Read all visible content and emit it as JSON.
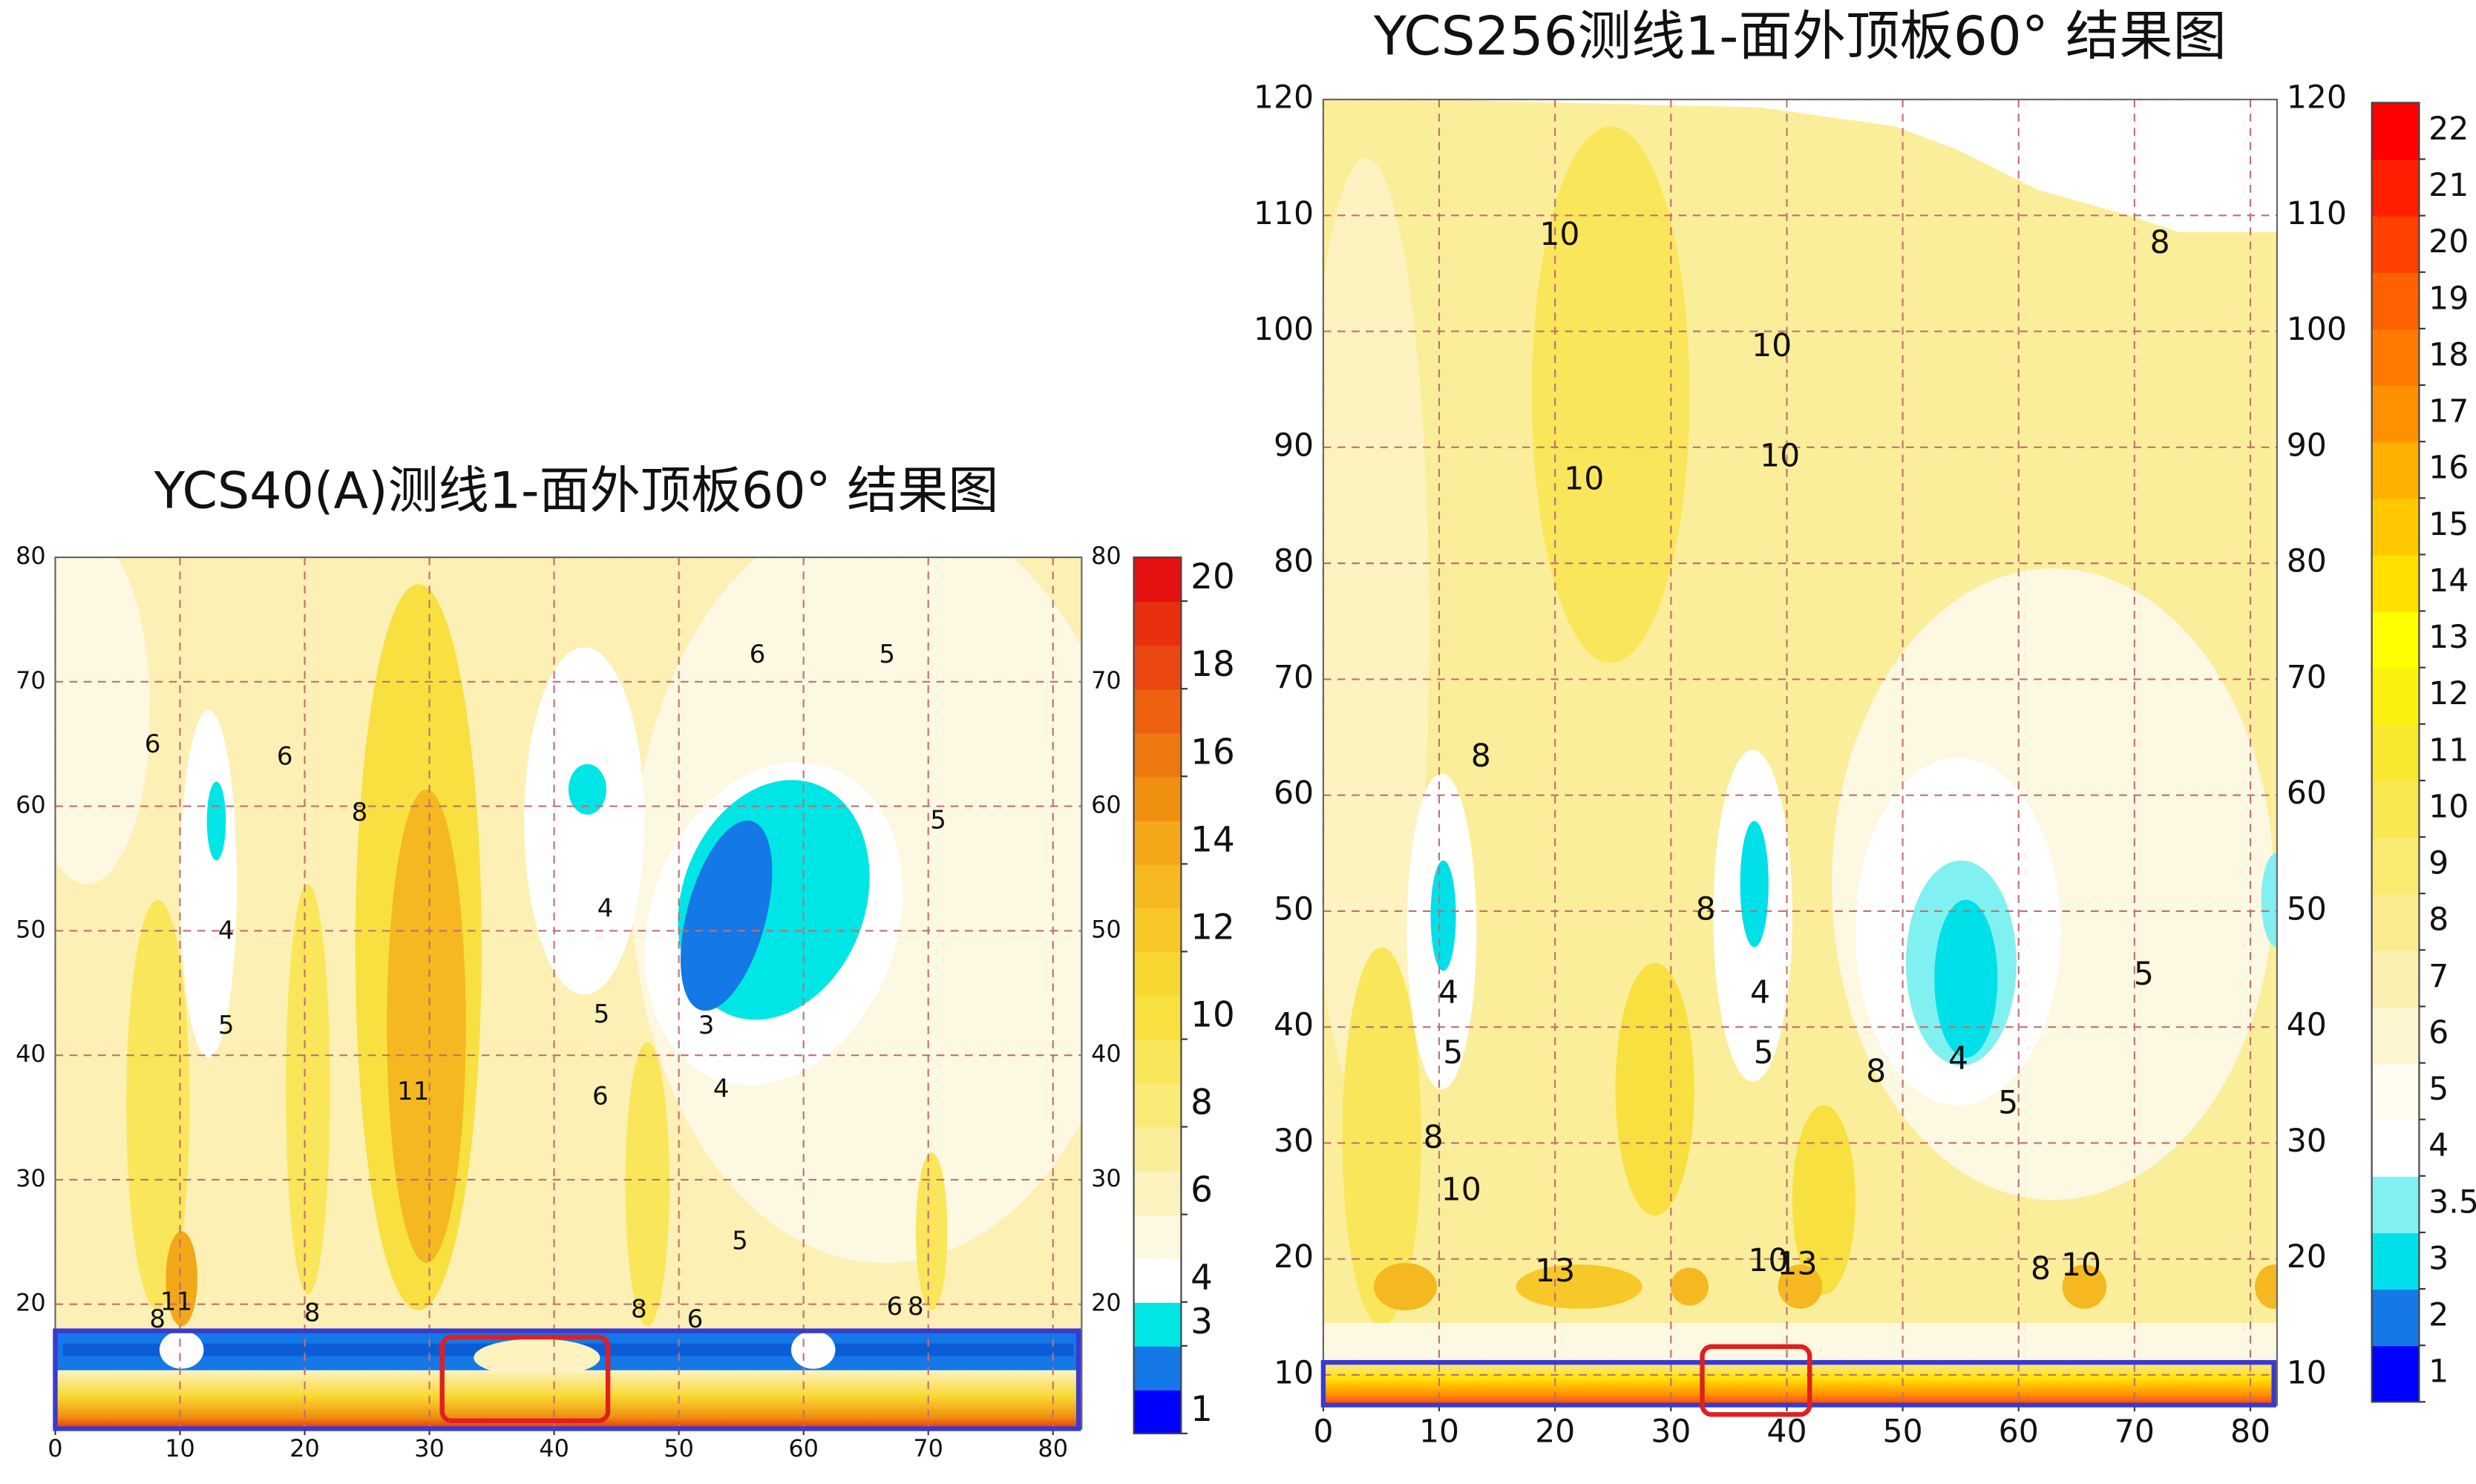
{
  "chart_data": [
    {
      "type": "contour",
      "title": "YCS40(A)测线1-面外顶板60° 结果图",
      "xlim": [
        0,
        82.3
      ],
      "ylim": [
        10,
        80
      ],
      "xticks": [
        0,
        10,
        20,
        30,
        40,
        50,
        60,
        70,
        80
      ],
      "yticks": [
        20,
        30,
        40,
        50,
        60,
        70,
        80
      ],
      "colorbar": {
        "levels": [
          1,
          2,
          3,
          4,
          5,
          6,
          7,
          8,
          9,
          10,
          11,
          12,
          13,
          14,
          15,
          16,
          17,
          18,
          19,
          20
        ],
        "colors": [
          "#0000ff",
          "#1478e6",
          "#00e5e5",
          "#ffffff",
          "#fdf8e0",
          "#fcf3c0",
          "#fbee9a",
          "#faea78",
          "#fae65a",
          "#f8e040",
          "#f8d830",
          "#f7c828",
          "#f5b820",
          "#f2a818",
          "#f09010",
          "#ee7810",
          "#ec6010",
          "#ea4810",
          "#e83010",
          "#e61010"
        ],
        "ticks": [
          1,
          3,
          4,
          6,
          8,
          10,
          12,
          14,
          16,
          18,
          20
        ]
      },
      "contour_labels": [
        {
          "value": 6,
          "x": 7.8,
          "y": 64.9
        },
        {
          "value": 6,
          "x": 18.4,
          "y": 63.9
        },
        {
          "value": 8,
          "x": 24.4,
          "y": 59.4
        },
        {
          "value": 4,
          "x": 13.7,
          "y": 49.9
        },
        {
          "value": 5,
          "x": 13.7,
          "y": 42.3
        },
        {
          "value": 11,
          "x": 28.7,
          "y": 37
        },
        {
          "value": 6,
          "x": 56.3,
          "y": 72.1
        },
        {
          "value": 5,
          "x": 66.7,
          "y": 72.1
        },
        {
          "value": 5,
          "x": 70.8,
          "y": 58.8
        },
        {
          "value": 4,
          "x": 44.1,
          "y": 51.7
        },
        {
          "value": 5,
          "x": 43.8,
          "y": 43.2
        },
        {
          "value": 3,
          "x": 52.2,
          "y": 42.3
        },
        {
          "value": 4,
          "x": 53.4,
          "y": 37.2
        },
        {
          "value": 6,
          "x": 43.7,
          "y": 36.6
        },
        {
          "value": 5,
          "x": 54.9,
          "y": 25
        },
        {
          "value": 11,
          "x": 9.7,
          "y": 20.1
        },
        {
          "value": 8,
          "x": 8.2,
          "y": 18.7
        },
        {
          "value": 8,
          "x": 20.6,
          "y": 19.2
        },
        {
          "value": 8,
          "x": 46.8,
          "y": 19.5
        },
        {
          "value": 6,
          "x": 51.3,
          "y": 18.7
        },
        {
          "value": 6,
          "x": 67.3,
          "y": 19.7
        },
        {
          "value": 8,
          "x": 69,
          "y": 19.7
        }
      ]
    },
    {
      "type": "contour",
      "title": "YCS256测线1-面外顶板60° 结果图",
      "xlim": [
        0,
        82.3
      ],
      "ylim": [
        7.4,
        120
      ],
      "xticks": [
        0,
        10,
        20,
        30,
        40,
        50,
        60,
        70,
        80
      ],
      "yticks": [
        10,
        20,
        30,
        40,
        50,
        60,
        70,
        80,
        90,
        100,
        110,
        120
      ],
      "colorbar": {
        "levels": [
          1,
          2,
          3,
          3.5,
          4,
          5,
          6,
          7,
          8,
          9,
          10,
          11,
          12,
          13,
          14,
          15,
          16,
          17,
          18,
          19,
          20,
          21,
          22
        ],
        "colors": [
          "#0000ff",
          "#1478e6",
          "#00e0e8",
          "#80f0f0",
          "#ffffff",
          "#fffcf0",
          "#fdf5d0",
          "#fcf0b0",
          "#fbeb90",
          "#faea70",
          "#f9e650",
          "#f8e830",
          "#fcf010",
          "#ffff00",
          "#ffe000",
          "#ffc800",
          "#ffb000",
          "#ff9000",
          "#ff7800",
          "#ff6000",
          "#ff4000",
          "#ff2000",
          "#ff0000"
        ],
        "ticks": [
          1,
          2,
          3,
          3.5,
          4,
          5,
          6,
          7,
          8,
          9,
          10,
          11,
          12,
          13,
          14,
          15,
          16,
          17,
          18,
          19,
          20,
          21,
          22
        ]
      },
      "contour_labels": [
        {
          "value": 10,
          "x": 20.4,
          "y": 108.2
        },
        {
          "value": 8,
          "x": 72.2,
          "y": 107.5
        },
        {
          "value": 10,
          "x": 38.7,
          "y": 98.6
        },
        {
          "value": 10,
          "x": 39.4,
          "y": 89.1
        },
        {
          "value": 10,
          "x": 22.5,
          "y": 87.1
        },
        {
          "value": 8,
          "x": 13.6,
          "y": 63.2
        },
        {
          "value": 8,
          "x": 33,
          "y": 50
        },
        {
          "value": 4,
          "x": 10.8,
          "y": 42.8
        },
        {
          "value": 5,
          "x": 11.2,
          "y": 37.6
        },
        {
          "value": 8,
          "x": 9.5,
          "y": 30.3
        },
        {
          "value": 10,
          "x": 11.9,
          "y": 25.8
        },
        {
          "value": 4,
          "x": 37.7,
          "y": 42.8
        },
        {
          "value": 5,
          "x": 38,
          "y": 37.6
        },
        {
          "value": 8,
          "x": 47.7,
          "y": 36
        },
        {
          "value": 4,
          "x": 54.8,
          "y": 37.1
        },
        {
          "value": 5,
          "x": 59.1,
          "y": 33.3
        },
        {
          "value": 5,
          "x": 70.8,
          "y": 44.4
        },
        {
          "value": 13,
          "x": 20,
          "y": 18.8
        },
        {
          "value": 10,
          "x": 38.4,
          "y": 19.7
        },
        {
          "value": 13,
          "x": 40.9,
          "y": 19.4
        },
        {
          "value": 8,
          "x": 61.9,
          "y": 19
        },
        {
          "value": 10,
          "x": 65.4,
          "y": 19.3
        }
      ]
    }
  ]
}
